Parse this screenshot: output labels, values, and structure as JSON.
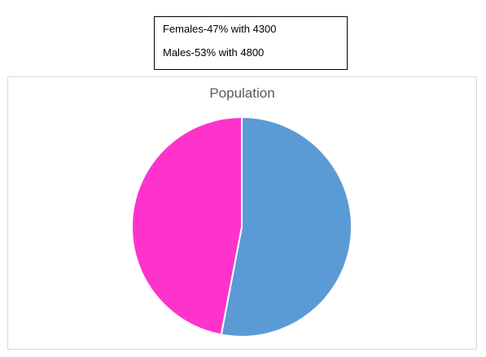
{
  "note": {
    "lines": [
      "Females-47% with 4300",
      "Males-53% with 4800"
    ]
  },
  "chart_data": {
    "type": "pie",
    "title": "Population",
    "legend": "none",
    "slices": [
      {
        "label": "Males",
        "value": 53,
        "color": "#5B9BD5"
      },
      {
        "label": "Females",
        "value": 47,
        "color": "#FF33CC"
      }
    ],
    "start_angle": 0,
    "direction": "clockwise"
  }
}
